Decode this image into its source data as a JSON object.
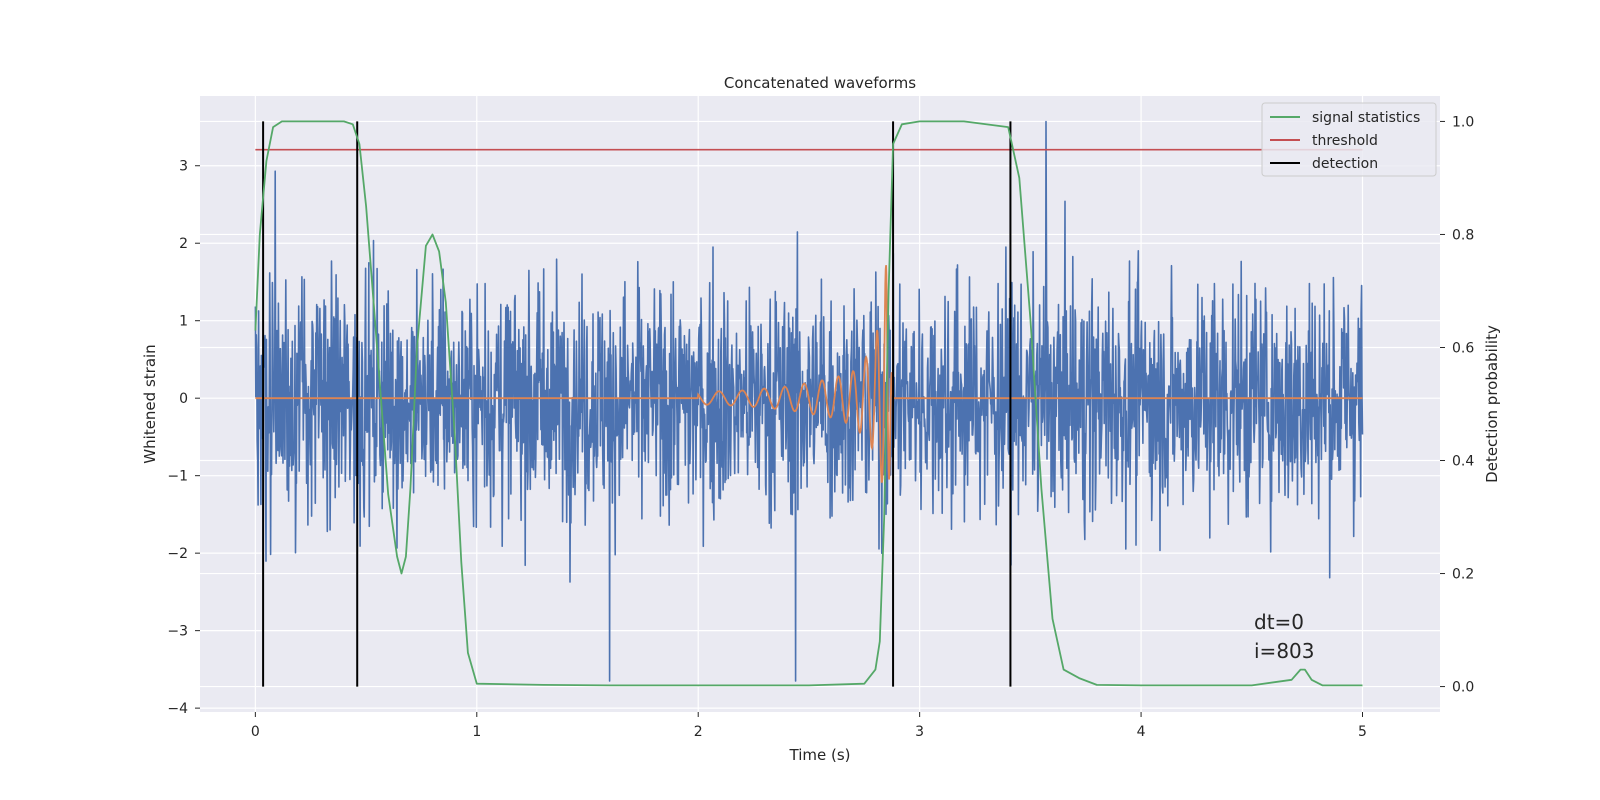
{
  "chart_data": {
    "type": "line",
    "title": "Concatenated waveforms",
    "xlabel": "Time (s)",
    "ylabel": "Whitened strain",
    "y2label": "Detection probability",
    "xlim": [
      -0.25,
      5.35
    ],
    "ylim": [
      -4.05,
      3.9
    ],
    "y2lim": [
      -0.045,
      1.045
    ],
    "x_ticks": [
      0,
      1,
      2,
      3,
      4,
      5
    ],
    "y_ticks": [
      -4,
      -3,
      -2,
      -1,
      0,
      1,
      2,
      3
    ],
    "y2_ticks": [
      0.0,
      0.2,
      0.4,
      0.6,
      0.8,
      1.0
    ],
    "x_tick_labels": [
      "0",
      "1",
      "2",
      "3",
      "4",
      "5"
    ],
    "y_tick_labels": [
      "−4",
      "−3",
      "−2",
      "−1",
      "0",
      "1",
      "2",
      "3"
    ],
    "y2_tick_labels": [
      "0.0",
      "0.2",
      "0.4",
      "0.6",
      "0.8",
      "1.0"
    ],
    "grid": true,
    "legend_position": "top-right",
    "annotations": [
      "dt=0",
      "i=803"
    ],
    "series": [
      {
        "name": "",
        "kind": "noise",
        "color": "#4c72b0",
        "axis": "left",
        "x_range": [
          0,
          5
        ],
        "approx_amplitude": 3.5,
        "notable_spikes": [
          [
            0.09,
            2.93
          ],
          [
            1.6,
            -3.65
          ],
          [
            2.44,
            -3.65
          ],
          [
            3.57,
            3.57
          ],
          [
            2.83,
            -2.0
          ]
        ]
      },
      {
        "name": "",
        "kind": "chirp",
        "color": "#dd8452",
        "axis": "left",
        "x": [
          0,
          2.0,
          2.2,
          2.4,
          2.6,
          2.7,
          2.78,
          2.83,
          2.85,
          2.88,
          5.0
        ],
        "amplitude": [
          0,
          0.08,
          0.1,
          0.15,
          0.25,
          0.35,
          0.6,
          1.1,
          1.8,
          0,
          0
        ]
      },
      {
        "name": "signal statistics",
        "color": "#55a868",
        "axis": "right",
        "x": [
          0.0,
          0.02,
          0.05,
          0.08,
          0.12,
          0.2,
          0.3,
          0.4,
          0.44,
          0.47,
          0.5,
          0.55,
          0.6,
          0.64,
          0.66,
          0.68,
          0.7,
          0.73,
          0.77,
          0.8,
          0.83,
          0.86,
          0.9,
          0.93,
          0.96,
          1.0,
          1.3,
          1.6,
          2.0,
          2.5,
          2.75,
          2.8,
          2.82,
          2.84,
          2.86,
          2.88,
          2.92,
          3.0,
          3.2,
          3.4,
          3.45,
          3.5,
          3.55,
          3.6,
          3.65,
          3.72,
          3.8,
          4.0,
          4.5,
          4.68,
          4.72,
          4.74,
          4.77,
          4.82,
          4.9,
          5.0
        ],
        "values": [
          0.63,
          0.8,
          0.93,
          0.99,
          1.0,
          1.0,
          1.0,
          1.0,
          0.995,
          0.96,
          0.85,
          0.6,
          0.34,
          0.23,
          0.2,
          0.23,
          0.35,
          0.6,
          0.78,
          0.8,
          0.77,
          0.68,
          0.45,
          0.22,
          0.06,
          0.005,
          0.003,
          0.002,
          0.002,
          0.002,
          0.005,
          0.03,
          0.08,
          0.3,
          0.7,
          0.96,
          0.995,
          1.0,
          1.0,
          0.99,
          0.9,
          0.65,
          0.35,
          0.12,
          0.03,
          0.015,
          0.003,
          0.002,
          0.002,
          0.012,
          0.03,
          0.03,
          0.012,
          0.002,
          0.002,
          0.002
        ]
      },
      {
        "name": "threshold",
        "color": "#c44e52",
        "axis": "right",
        "x": [
          0,
          5
        ],
        "values": [
          0.95,
          0.95
        ]
      },
      {
        "name": "detection",
        "color": "#000000",
        "axis": "right",
        "kind": "vlines",
        "x": [
          0.035,
          0.46,
          2.88,
          3.41
        ],
        "ymin": 0,
        "ymax": 1
      }
    ]
  }
}
